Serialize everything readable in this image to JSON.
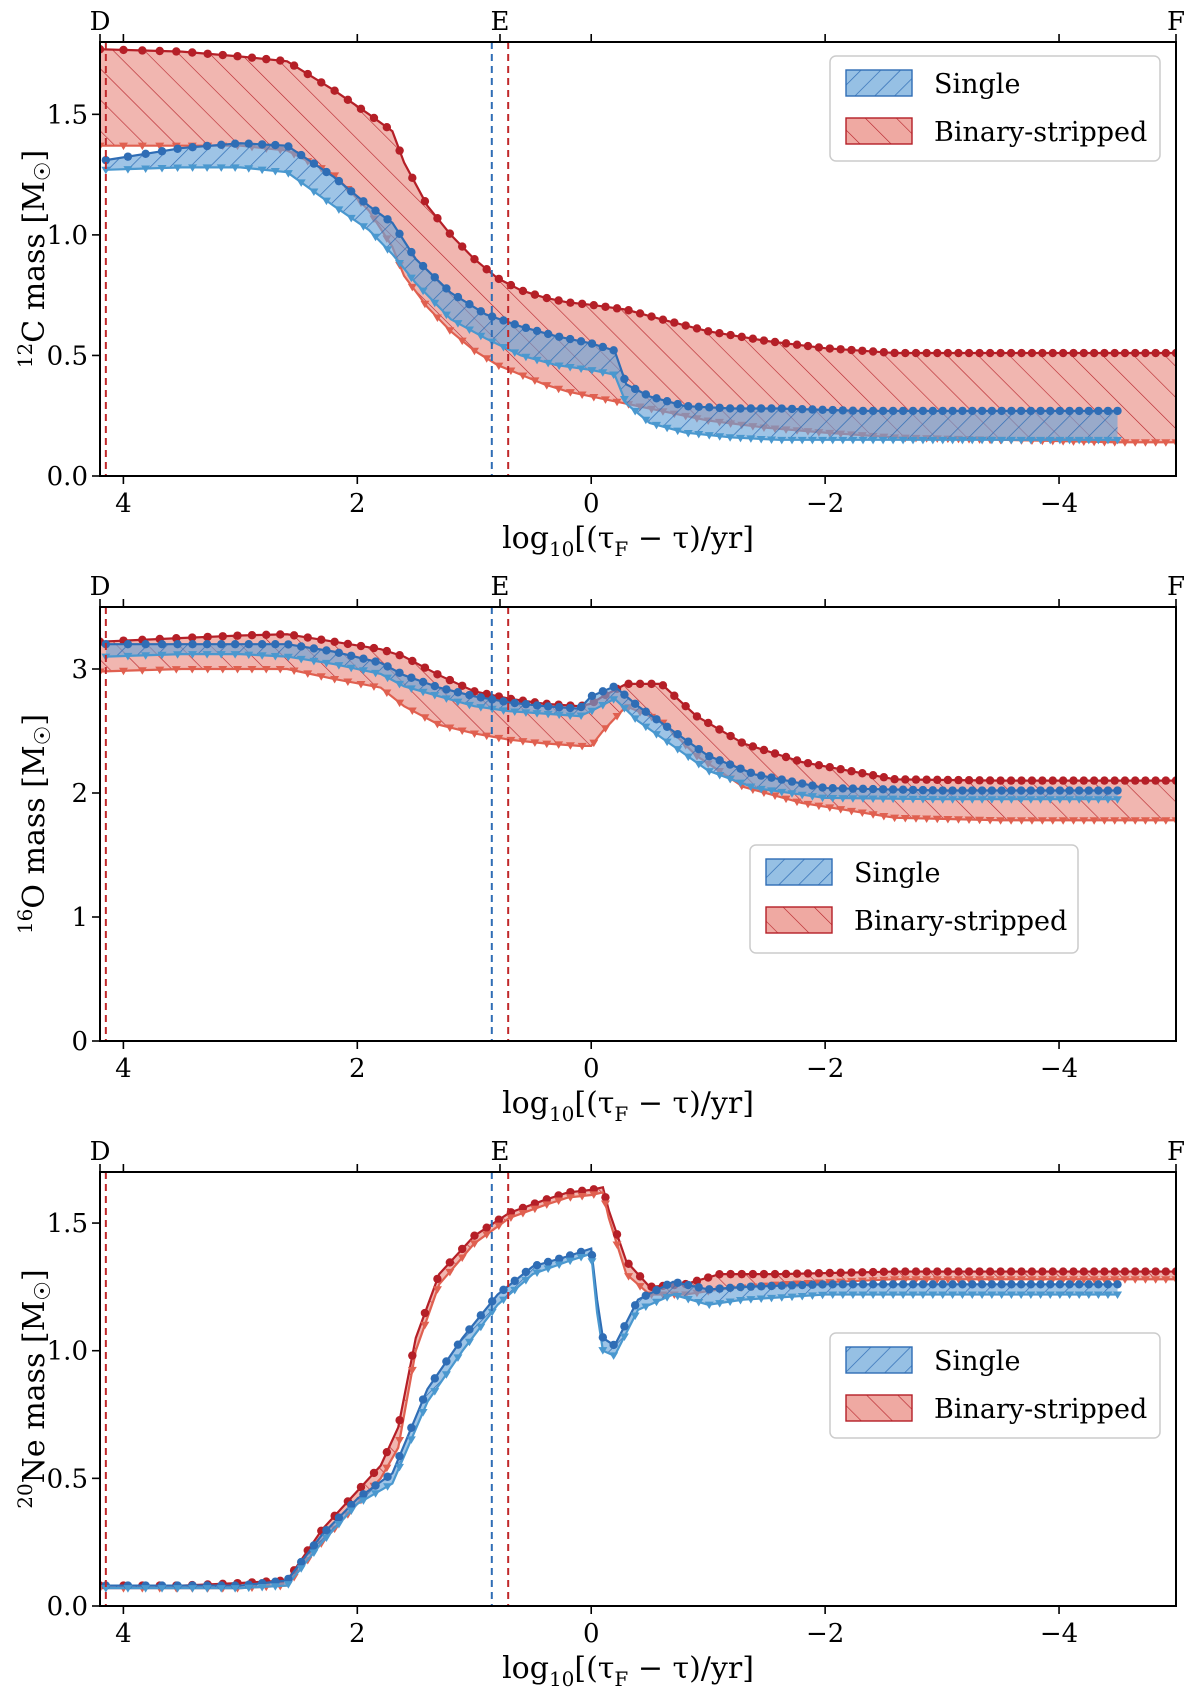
{
  "colors": {
    "single_line": "#2f6db5",
    "single_fill": "#6aa5d8",
    "single_marker_low": "#4a98cf",
    "binary_line": "#b51f27",
    "binary_fill": "#e8857b",
    "binary_marker_low": "#e06050",
    "vline_single": "#2f6db5",
    "vline_binary": "#c0282a"
  },
  "chart_data": [
    {
      "type": "area",
      "id": "carbon",
      "ylabel_text": "C mass [M",
      "ylabel_sup": "12",
      "ylabel_sun": "☉",
      "ylabel_close": "]",
      "xlabel_main": "log",
      "xlabel_sub": "10",
      "xlabel_rest": "[(τ",
      "xlabel_sub2": "F",
      "xlabel_end": " − τ)/yr]",
      "xlim": [
        4.2,
        -5.0
      ],
      "ylim": [
        0.0,
        1.8
      ],
      "xticks": [
        4,
        2,
        0,
        -2,
        -4
      ],
      "xtick_labels": [
        "4",
        "2",
        "0",
        "−2",
        "−4"
      ],
      "yticks": [
        0.0,
        0.5,
        1.0,
        1.5
      ],
      "ytick_labels": [
        "0.0",
        "0.5",
        "1.0",
        "1.5"
      ],
      "phase_markers": [
        {
          "label": "D",
          "x": 4.2
        },
        {
          "label": "E",
          "x": 0.78
        },
        {
          "label": "F",
          "x": -5.0
        }
      ],
      "vlines": [
        {
          "series": "single",
          "x": 0.85
        },
        {
          "series": "binary",
          "x": 0.71
        },
        {
          "series": "binary",
          "x": 4.15
        }
      ],
      "legend": {
        "position": "top-right",
        "entries": [
          "Single",
          "Binary-stripped"
        ]
      },
      "series": [
        {
          "name": "Binary-stripped",
          "x": [
            4.2,
            3.5,
            3.0,
            2.6,
            2.2,
            1.9,
            1.7,
            1.6,
            1.4,
            1.2,
            1.0,
            0.8,
            0.6,
            0.4,
            0.2,
            0.0,
            -0.3,
            -0.6,
            -1.0,
            -1.5,
            -2.0,
            -2.6,
            -3.5,
            -4.5,
            -5.0
          ],
          "upper": [
            1.77,
            1.76,
            1.74,
            1.72,
            1.6,
            1.5,
            1.43,
            1.3,
            1.12,
            1.0,
            0.9,
            0.82,
            0.77,
            0.74,
            0.72,
            0.71,
            0.69,
            0.65,
            0.6,
            0.56,
            0.53,
            0.51,
            0.51,
            0.51,
            0.51
          ],
          "lower": [
            1.37,
            1.37,
            1.37,
            1.35,
            1.25,
            1.1,
            0.95,
            0.83,
            0.7,
            0.6,
            0.52,
            0.46,
            0.42,
            0.38,
            0.35,
            0.33,
            0.3,
            0.27,
            0.23,
            0.2,
            0.18,
            0.16,
            0.15,
            0.14,
            0.14
          ]
        },
        {
          "name": "Single",
          "x": [
            4.15,
            3.5,
            3.0,
            2.6,
            2.2,
            1.9,
            1.7,
            1.5,
            1.2,
            0.9,
            0.6,
            0.3,
            0.0,
            -0.2,
            -0.3,
            -0.5,
            -0.8,
            -1.2,
            -1.6,
            -2.3,
            -3.0,
            -4.0,
            -4.5
          ],
          "upper": [
            1.31,
            1.36,
            1.38,
            1.37,
            1.24,
            1.12,
            1.05,
            0.9,
            0.76,
            0.67,
            0.62,
            0.58,
            0.55,
            0.52,
            0.38,
            0.33,
            0.29,
            0.28,
            0.28,
            0.27,
            0.27,
            0.27,
            0.27
          ],
          "lower": [
            1.27,
            1.28,
            1.28,
            1.26,
            1.12,
            1.02,
            0.92,
            0.8,
            0.65,
            0.57,
            0.5,
            0.46,
            0.44,
            0.42,
            0.3,
            0.22,
            0.18,
            0.16,
            0.15,
            0.15,
            0.15,
            0.15,
            0.15
          ]
        }
      ]
    },
    {
      "type": "area",
      "id": "oxygen",
      "ylabel_text": "O mass [M",
      "ylabel_sup": "16",
      "ylabel_sun": "☉",
      "ylabel_close": "]",
      "xlabel_main": "log",
      "xlabel_sub": "10",
      "xlabel_rest": "[(τ",
      "xlabel_sub2": "F",
      "xlabel_end": " − τ)/yr]",
      "xlim": [
        4.2,
        -5.0
      ],
      "ylim": [
        0,
        3.5
      ],
      "xticks": [
        4,
        2,
        0,
        -2,
        -4
      ],
      "xtick_labels": [
        "4",
        "2",
        "0",
        "−2",
        "−4"
      ],
      "yticks": [
        0,
        1,
        2,
        3
      ],
      "ytick_labels": [
        "0",
        "1",
        "2",
        "3"
      ],
      "phase_markers": [
        {
          "label": "D",
          "x": 4.2
        },
        {
          "label": "E",
          "x": 0.78
        },
        {
          "label": "F",
          "x": -5.0
        }
      ],
      "vlines": [
        {
          "series": "single",
          "x": 0.85
        },
        {
          "series": "binary",
          "x": 0.71
        },
        {
          "series": "binary",
          "x": 4.15
        }
      ],
      "legend": {
        "position": "center-right",
        "entries": [
          "Single",
          "Binary-stripped"
        ]
      },
      "series": [
        {
          "name": "Binary-stripped",
          "x": [
            4.2,
            3.5,
            3.0,
            2.6,
            2.2,
            1.8,
            1.6,
            1.3,
            1.0,
            0.7,
            0.4,
            0.1,
            0.0,
            -0.1,
            -0.3,
            -0.6,
            -0.9,
            -1.3,
            -1.8,
            -2.6,
            -3.5,
            -4.5,
            -5.0
          ],
          "upper": [
            3.22,
            3.25,
            3.27,
            3.28,
            3.22,
            3.16,
            3.1,
            2.95,
            2.82,
            2.76,
            2.72,
            2.7,
            2.72,
            2.78,
            2.88,
            2.88,
            2.62,
            2.4,
            2.25,
            2.11,
            2.1,
            2.1,
            2.1
          ],
          "lower": [
            2.98,
            3.0,
            3.0,
            3.0,
            2.92,
            2.85,
            2.7,
            2.55,
            2.48,
            2.43,
            2.4,
            2.38,
            2.38,
            2.5,
            2.7,
            2.58,
            2.3,
            2.05,
            1.92,
            1.8,
            1.78,
            1.78,
            1.78
          ]
        },
        {
          "name": "Single",
          "x": [
            4.15,
            3.5,
            3.0,
            2.6,
            2.2,
            1.8,
            1.6,
            1.3,
            1.0,
            0.7,
            0.4,
            0.1,
            0.0,
            -0.2,
            -0.4,
            -0.7,
            -1.0,
            -1.4,
            -2.0,
            -3.0,
            -4.0,
            -4.5
          ],
          "upper": [
            3.2,
            3.2,
            3.2,
            3.2,
            3.14,
            3.05,
            2.95,
            2.85,
            2.78,
            2.73,
            2.7,
            2.68,
            2.78,
            2.86,
            2.7,
            2.5,
            2.3,
            2.15,
            2.04,
            2.02,
            2.02,
            2.02
          ],
          "lower": [
            3.1,
            3.12,
            3.12,
            3.1,
            3.04,
            2.96,
            2.86,
            2.78,
            2.7,
            2.66,
            2.64,
            2.62,
            2.66,
            2.76,
            2.58,
            2.38,
            2.18,
            2.04,
            1.96,
            1.95,
            1.95,
            1.95
          ]
        }
      ]
    },
    {
      "type": "area",
      "id": "neon",
      "ylabel_text": "Ne mass [M",
      "ylabel_sup": "20",
      "ylabel_sun": "☉",
      "ylabel_close": "]",
      "xlabel_main": "log",
      "xlabel_sub": "10",
      "xlabel_rest": "[(τ",
      "xlabel_sub2": "F",
      "xlabel_end": " − τ)/yr]",
      "xlim": [
        4.2,
        -5.0
      ],
      "ylim": [
        0.0,
        1.7
      ],
      "xticks": [
        4,
        2,
        0,
        -2,
        -4
      ],
      "xtick_labels": [
        "4",
        "2",
        "0",
        "−2",
        "−4"
      ],
      "yticks": [
        0.0,
        0.5,
        1.0,
        1.5
      ],
      "ytick_labels": [
        "0.0",
        "0.5",
        "1.0",
        "1.5"
      ],
      "phase_markers": [
        {
          "label": "D",
          "x": 4.2
        },
        {
          "label": "E",
          "x": 0.78
        },
        {
          "label": "F",
          "x": -5.0
        }
      ],
      "vlines": [
        {
          "series": "single",
          "x": 0.85
        },
        {
          "series": "binary",
          "x": 0.71
        },
        {
          "series": "binary",
          "x": 4.15
        }
      ],
      "legend": {
        "position": "center-right",
        "entries": [
          "Single",
          "Binary-stripped"
        ]
      },
      "series": [
        {
          "name": "Binary-stripped",
          "x": [
            4.2,
            3.5,
            3.0,
            2.6,
            2.3,
            2.0,
            1.8,
            1.65,
            1.5,
            1.3,
            1.0,
            0.7,
            0.4,
            0.2,
            0.0,
            -0.1,
            -0.15,
            -0.3,
            -0.5,
            -0.8,
            -1.1,
            -1.6,
            -2.6,
            -3.5,
            -4.5,
            -5.0
          ],
          "upper": [
            0.08,
            0.08,
            0.09,
            0.1,
            0.3,
            0.45,
            0.55,
            0.7,
            1.05,
            1.3,
            1.45,
            1.54,
            1.59,
            1.62,
            1.63,
            1.64,
            1.55,
            1.35,
            1.25,
            1.26,
            1.3,
            1.3,
            1.31,
            1.31,
            1.31,
            1.31
          ],
          "lower": [
            0.07,
            0.07,
            0.07,
            0.08,
            0.25,
            0.4,
            0.5,
            0.62,
            1.0,
            1.26,
            1.42,
            1.52,
            1.57,
            1.6,
            1.61,
            1.62,
            1.52,
            1.3,
            1.22,
            1.22,
            1.24,
            1.26,
            1.28,
            1.28,
            1.28,
            1.28
          ]
        },
        {
          "name": "Single",
          "x": [
            4.15,
            3.5,
            3.0,
            2.6,
            2.3,
            2.0,
            1.7,
            1.4,
            1.1,
            0.8,
            0.5,
            0.2,
            0.0,
            -0.05,
            -0.1,
            -0.2,
            -0.4,
            -0.7,
            -1.0,
            -1.3,
            -2.0,
            -3.0,
            -4.0,
            -4.5
          ],
          "upper": [
            0.08,
            0.08,
            0.08,
            0.1,
            0.28,
            0.42,
            0.52,
            0.85,
            1.05,
            1.22,
            1.33,
            1.37,
            1.4,
            1.2,
            1.05,
            1.02,
            1.2,
            1.27,
            1.24,
            1.25,
            1.26,
            1.26,
            1.26,
            1.26
          ],
          "lower": [
            0.07,
            0.07,
            0.07,
            0.08,
            0.25,
            0.4,
            0.48,
            0.8,
            1.0,
            1.18,
            1.3,
            1.35,
            1.38,
            1.15,
            1.0,
            0.98,
            1.16,
            1.22,
            1.18,
            1.2,
            1.22,
            1.22,
            1.22,
            1.22
          ]
        }
      ]
    }
  ]
}
